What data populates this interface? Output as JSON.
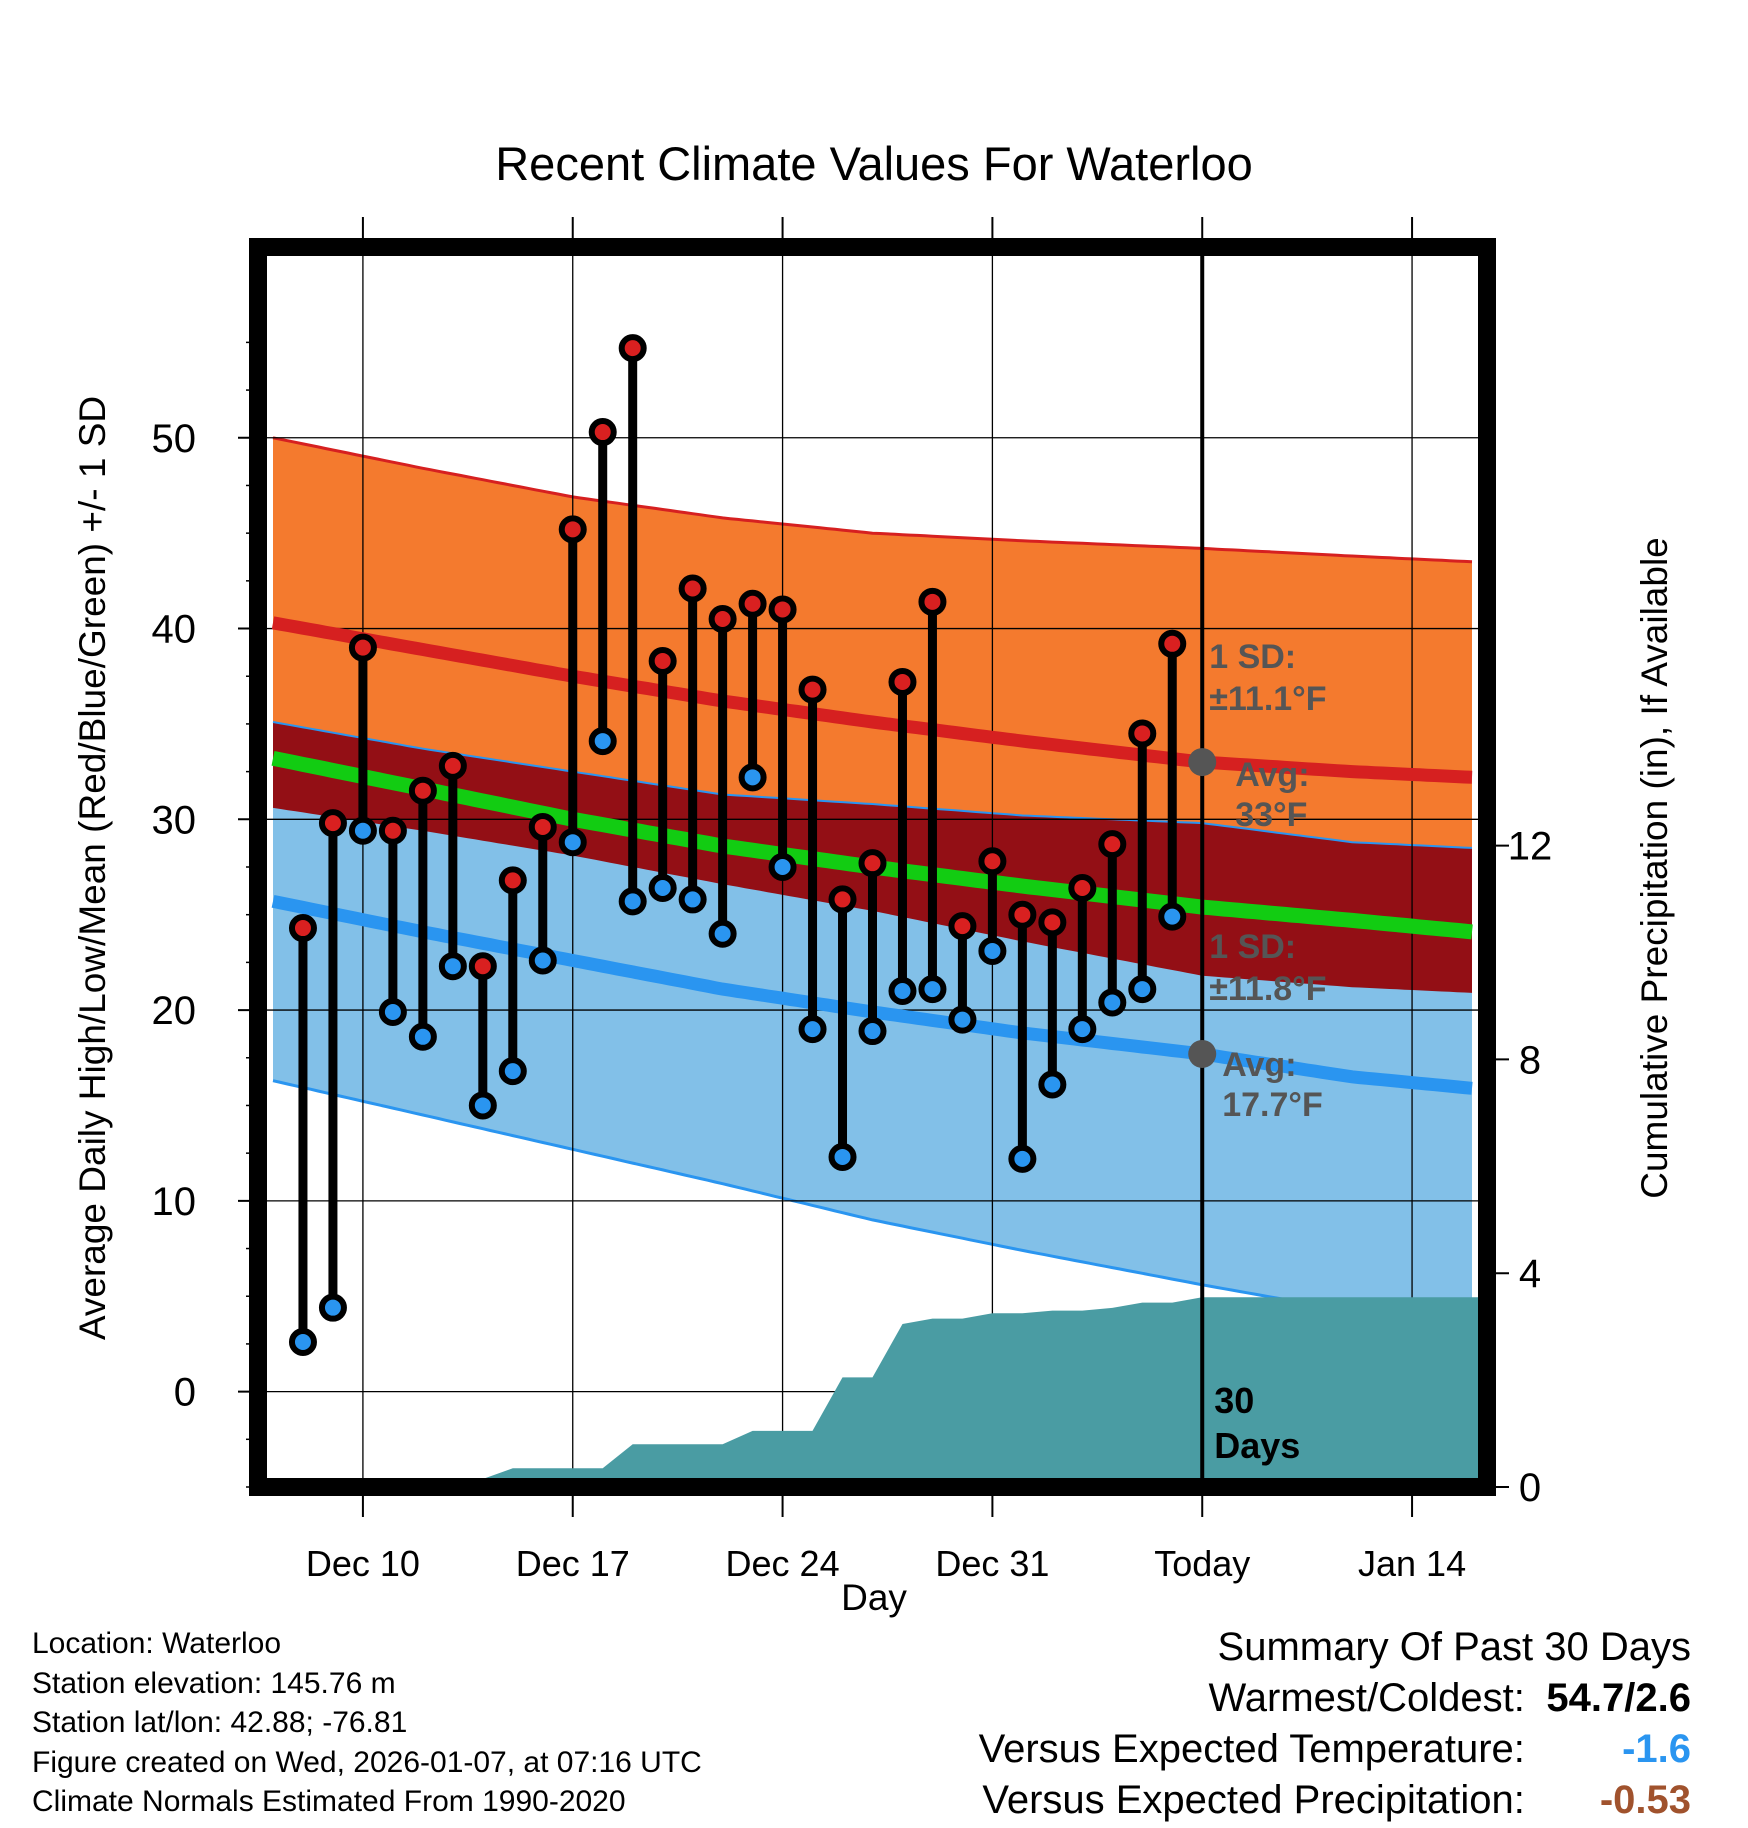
{
  "chart_data": {
    "type": "line",
    "title": "Recent Climate Values For Waterloo",
    "xlabel": "Day",
    "ylabel": "Average Daily High/Low/Mean (Red/Blue/Green) +/- 1 SD",
    "y2label": "Cumulative Precipitation (in), If Available",
    "ylim": [
      -5,
      60
    ],
    "y_ticks": [
      0,
      10,
      20,
      30,
      40,
      50
    ],
    "y2lim": [
      0,
      23.2
    ],
    "y2_ticks": [
      0,
      4,
      8,
      12
    ],
    "x_range_days": [
      -31.5,
      9.5
    ],
    "x_ticks": [
      {
        "day": -28,
        "label": "Dec 10"
      },
      {
        "day": -21,
        "label": "Dec 17"
      },
      {
        "day": -14,
        "label": "Dec 24"
      },
      {
        "day": -7,
        "label": "Dec 31"
      },
      {
        "day": 0,
        "label": "Today"
      },
      {
        "day": 7,
        "label": "Jan 14"
      }
    ],
    "today_label": "30 Days",
    "normals": {
      "days": [
        -31,
        -26,
        -21,
        -16,
        -11,
        -6,
        0,
        5,
        9
      ],
      "avg_high": [
        40.3,
        38.9,
        37.5,
        36.2,
        35.1,
        34.1,
        33.0,
        32.5,
        32.2
      ],
      "avg_high_upper": [
        50.0,
        48.4,
        46.9,
        45.8,
        45.0,
        44.6,
        44.2,
        43.8,
        43.5
      ],
      "avg_low": [
        25.7,
        24.1,
        22.6,
        21.1,
        19.9,
        18.8,
        17.7,
        16.5,
        15.9
      ],
      "avg_low_lower": [
        16.3,
        14.5,
        12.7,
        10.9,
        9.0,
        7.4,
        5.6,
        4.2,
        3.3
      ],
      "avg_mean": [
        33.2,
        31.6,
        30.0,
        28.6,
        27.5,
        26.5,
        25.4,
        24.7,
        24.1
      ]
    },
    "series": [
      {
        "name": "Daily High",
        "color": "#d92020",
        "days": [
          -30,
          -29,
          -28,
          -27,
          -26,
          -25,
          -24,
          -23,
          -22,
          -21,
          -20,
          -19,
          -18,
          -17,
          -16,
          -15,
          -14,
          -13,
          -12,
          -11,
          -10,
          -9,
          -8,
          -7,
          -6,
          -5,
          -4,
          -3,
          -2,
          -1
        ],
        "values": [
          24.3,
          29.8,
          39.0,
          29.4,
          31.5,
          32.8,
          22.3,
          26.8,
          29.6,
          45.2,
          50.3,
          54.7,
          38.3,
          42.1,
          40.5,
          41.3,
          41.0,
          36.8,
          25.8,
          27.7,
          37.2,
          41.4,
          24.4,
          27.8,
          25.0,
          24.6,
          26.4,
          28.7,
          34.5,
          39.2
        ]
      },
      {
        "name": "Daily Low",
        "color": "#2a95f0",
        "days": [
          -30,
          -29,
          -28,
          -27,
          -26,
          -25,
          -24,
          -23,
          -22,
          -21,
          -20,
          -19,
          -18,
          -17,
          -16,
          -15,
          -14,
          -13,
          -12,
          -11,
          -10,
          -9,
          -8,
          -7,
          -6,
          -5,
          -4,
          -3,
          -2,
          -1
        ],
        "values": [
          2.6,
          4.4,
          29.4,
          19.9,
          18.6,
          22.3,
          15.0,
          16.8,
          22.6,
          28.8,
          34.1,
          25.7,
          26.4,
          25.8,
          24.0,
          32.2,
          27.5,
          19.0,
          12.3,
          18.9,
          21.0,
          21.1,
          19.5,
          23.1,
          12.2,
          16.1,
          19.0,
          20.4,
          21.1,
          24.9
        ]
      },
      {
        "name": "Cumulative Precipitation (in)",
        "color": "#4a9ca3",
        "days": [
          -31.5,
          -28,
          -27,
          -26,
          -25,
          -24,
          -23,
          -22,
          -21,
          -20,
          -19,
          -18,
          -17,
          -16,
          -15,
          -14,
          -13,
          -12,
          -11,
          -10,
          -9,
          -8,
          -7,
          -6,
          -5,
          -4,
          -3,
          -2,
          -1,
          0,
          9.5
        ],
        "values": [
          0,
          0,
          0.02,
          0.05,
          0.1,
          0.15,
          0.35,
          0.35,
          0.35,
          0.35,
          0.8,
          0.8,
          0.8,
          0.8,
          1.05,
          1.05,
          1.05,
          2.05,
          2.05,
          3.05,
          3.15,
          3.15,
          3.25,
          3.25,
          3.3,
          3.3,
          3.35,
          3.45,
          3.45,
          3.55,
          3.55
        ]
      }
    ],
    "annotations": {
      "high_sd": "1 SD:",
      "high_sd_value": "±11.1°F",
      "high_avg": "Avg:",
      "high_avg_value": "33°F",
      "low_sd": "1 SD:",
      "low_sd_value": "±11.8°F",
      "low_avg": "Avg:",
      "low_avg_value": "17.7°F"
    },
    "colors": {
      "high_band": "#f47a2e",
      "high_line": "#d62020",
      "low_band": "#82c0e8",
      "low_line": "#2a95f0",
      "overlap_band": "#930f15",
      "mean_line": "#12cc12",
      "precip_fill": "#4a9ca3",
      "annotation_text": "#555555"
    }
  },
  "info": {
    "location": "Location: Waterloo",
    "elevation": "Station elevation: 145.76 m",
    "latlon": "Station lat/lon: 42.88; -76.81",
    "created": "Figure created on Wed, 2026-01-07, at 07:16 UTC",
    "normals": "Climate Normals Estimated From 1990-2020"
  },
  "summary": {
    "title": "Summary Of Past 30 Days",
    "warmest_label": "Warmest/Coldest:",
    "warmest_value": "54.7/2.6",
    "temp_label": "Versus Expected Temperature:",
    "temp_value": "-1.6",
    "temp_color": "#2a95f0",
    "precip_label": "Versus Expected Precipitation:",
    "precip_value": "-0.53",
    "precip_color": "#a0522d"
  }
}
